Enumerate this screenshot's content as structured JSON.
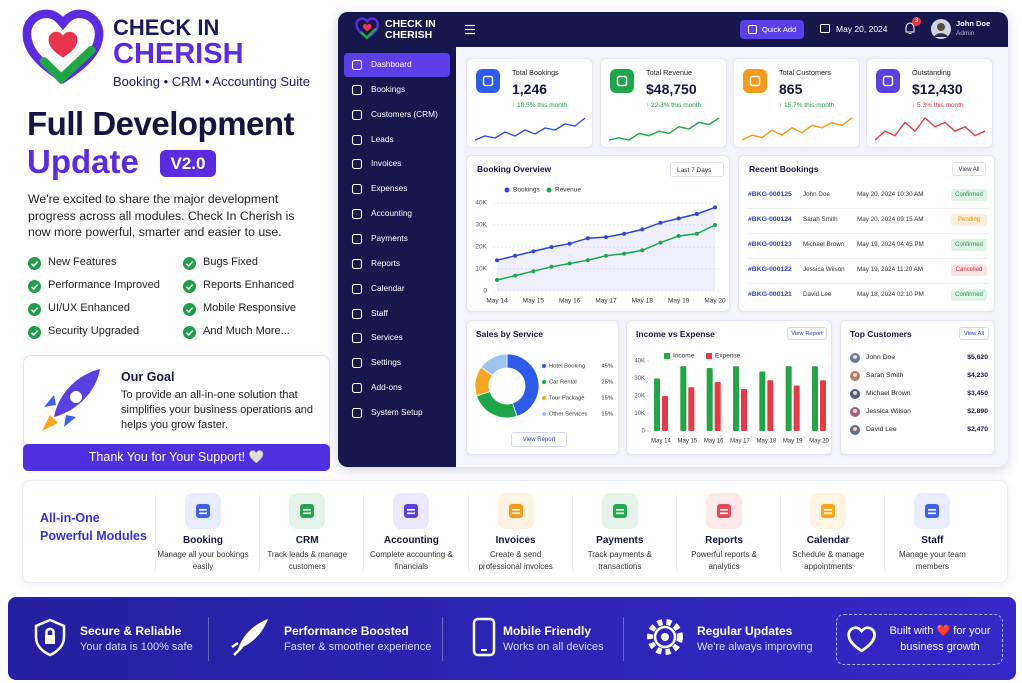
{
  "brand": {
    "name_line1": "CHECK IN",
    "name_line2": "CHERISH",
    "tagline": "Booking • CRM • Accounting Suite"
  },
  "hero": {
    "title_line1": "Full Development",
    "title_line2": "Update",
    "version": "V2.0",
    "description": "We're excited to share the major development progress across all modules. Check In Cherish is now more powerful, smarter and easier to use.",
    "features": [
      "New Features",
      "Bugs Fixed",
      "Performance Improved",
      "Reports Enhanced",
      "UI/UX Enhanced",
      "Mobile Responsive",
      "Security Upgraded",
      "And Much More..."
    ]
  },
  "goal": {
    "title": "Our Goal",
    "text": "To provide an all-in-one solution that simplifies your business operations and helps you grow faster.",
    "button": "Thank You for Your Support! 🤍"
  },
  "dashboard": {
    "brand": {
      "line1": "CHECK IN",
      "line2": "CHERISH"
    },
    "quick_add": "Quick Add",
    "date": "May 20, 2024",
    "notifications": "3",
    "user": {
      "name": "John Doe",
      "role": "Admin"
    },
    "nav": [
      "Dashboard",
      "Bookings",
      "Customers (CRM)",
      "Leads",
      "Invoices",
      "Expenses",
      "Accounting",
      "Payments",
      "Reports",
      "Calendar",
      "Staff",
      "Services",
      "Settings",
      "Add-ons",
      "System Setup"
    ],
    "stats": [
      {
        "label": "Total Bookings",
        "value": "1,246",
        "change": "↑ 18.5% this month",
        "color": "#2f5bea",
        "change_color": "#1f9d4a",
        "trend_color": "#2f4fd8",
        "trend": [
          4,
          6,
          5,
          8,
          6,
          9,
          7,
          10,
          9,
          12,
          11,
          15
        ]
      },
      {
        "label": "Total Revenue",
        "value": "$48,750",
        "change": "↑ 22.3% this month",
        "color": "#1fa54a",
        "change_color": "#1f9d4a",
        "trend_color": "#1fa54a",
        "trend": [
          3,
          4,
          3,
          6,
          5,
          7,
          6,
          9,
          8,
          11,
          10,
          13
        ]
      },
      {
        "label": "Total Customers",
        "value": "865",
        "change": "↑ 15.7% this month",
        "color": "#f59a1b",
        "change_color": "#1f9d4a",
        "trend_color": "#f59a1b",
        "trend": [
          3,
          5,
          4,
          7,
          5,
          8,
          6,
          9,
          8,
          10,
          9,
          12
        ]
      },
      {
        "label": "Outstanding",
        "value": "$12,430",
        "change": "↓ 5.3% this month",
        "color": "#5b3fe0",
        "change_color": "#d9313f",
        "trend_color": "#e23b4a",
        "trend": [
          7,
          9,
          8,
          11,
          9,
          12,
          10,
          11,
          9,
          10,
          8,
          9
        ]
      }
    ],
    "booking_overview": {
      "type": "line",
      "title": "Booking Overview",
      "range": "Last 7 Days",
      "x": [
        "May 14",
        null,
        "May 15",
        null,
        "May 16",
        null,
        "May 17",
        null,
        "May 18",
        null,
        "May 19",
        null,
        "May 20"
      ],
      "series": [
        {
          "name": "Bookings",
          "color": "#2f45d8",
          "values": [
            14000,
            16000,
            18000,
            20000,
            21500,
            24000,
            24500,
            26000,
            28000,
            31000,
            33000,
            35000,
            38000
          ]
        },
        {
          "name": "Revenue",
          "color": "#1fa54a",
          "values": [
            5000,
            7000,
            9000,
            11000,
            12500,
            14000,
            16000,
            17000,
            18500,
            22000,
            25000,
            26000,
            30000
          ]
        }
      ],
      "ylim": [
        0,
        40000
      ],
      "yticks": [
        0,
        {
          "value": 10000,
          "label": "10K"
        },
        {
          "value": 20000,
          "label": "20K"
        },
        {
          "value": 30000,
          "label": "30K"
        },
        {
          "value": 40000,
          "label": "40K"
        }
      ],
      "grid": true
    },
    "recent_bookings": {
      "title": "Recent Bookings",
      "button": "View All",
      "rows": [
        {
          "id": "#BKG-000125",
          "name": "John Doe",
          "datetime": "May 20, 2024 10:30 AM",
          "status": "Confirmed",
          "status_color": "#1f9d4a"
        },
        {
          "id": "#BKG-000124",
          "name": "Sarah Smith",
          "datetime": "May 20, 2024 09:15 AM",
          "status": "Pending",
          "status_color": "#e08a00"
        },
        {
          "id": "#BKG-000123",
          "name": "Michael Brown",
          "datetime": "May 19, 2024 04:45 PM",
          "status": "Confirmed",
          "status_color": "#1f9d4a"
        },
        {
          "id": "#BKG-000122",
          "name": "Jessica Wilson",
          "datetime": "May 19, 2024 11:20 AM",
          "status": "Cancelled",
          "status_color": "#d9313f"
        },
        {
          "id": "#BKG-000121",
          "name": "David Lee",
          "datetime": "May 18, 2024 02:10 PM",
          "status": "Confirmed",
          "status_color": "#1f9d4a"
        }
      ]
    },
    "sales_by_service": {
      "type": "pie",
      "title": "Sales by Service",
      "categories": [
        "Hotel Booking",
        "Car Rental",
        "Tour Package",
        "Other Services"
      ],
      "values": [
        45,
        25,
        15,
        15
      ],
      "value_labels": [
        "45%",
        "25%",
        "15%",
        "15%"
      ],
      "colors": [
        "#2f5bea",
        "#1fa54a",
        "#f5a623",
        "#9fc4f0"
      ],
      "button": "View Report"
    },
    "income_vs_expense": {
      "type": "bar",
      "title": "Income vs Expense",
      "button": "View Report",
      "categories": [
        "May 14",
        "May 15",
        "May 16",
        "May 17",
        "May 18",
        "May 19",
        "May 20"
      ],
      "series": [
        {
          "name": "Income",
          "color": "#22a447",
          "values": [
            30000,
            37000,
            36000,
            37000,
            34000,
            37000,
            37000
          ]
        },
        {
          "name": "Expense",
          "color": "#e23b4a",
          "values": [
            20000,
            25000,
            28000,
            24000,
            29000,
            26000,
            29000
          ]
        }
      ],
      "ylim": [
        0,
        40000
      ],
      "yticks": [
        0,
        {
          "value": 10000,
          "label": "10K"
        },
        {
          "value": 20000,
          "label": "20K"
        },
        {
          "value": 30000,
          "label": "30K"
        },
        {
          "value": 40000,
          "label": "40K"
        }
      ]
    },
    "top_customers": {
      "title": "Top Customers",
      "button": "View All",
      "rows": [
        {
          "name": "John Doe",
          "amount": "$5,620"
        },
        {
          "name": "Sarah Smith",
          "amount": "$4,230"
        },
        {
          "name": "Michael Brown",
          "amount": "$3,450"
        },
        {
          "name": "Jessica Wilson",
          "amount": "$2,890"
        },
        {
          "name": "David Lee",
          "amount": "$2,470"
        }
      ]
    }
  },
  "modules": {
    "title_line1": "All-in-One",
    "title_line2": "Powerful Modules",
    "items": [
      {
        "name": "Booking",
        "description": "Manage all your bookings easily",
        "color": "#3f63e8"
      },
      {
        "name": "CRM",
        "description": "Track leads & manage customers",
        "color": "#27a553"
      },
      {
        "name": "Accounting",
        "description": "Complete accounting & financials",
        "color": "#5b3fe0"
      },
      {
        "name": "Invoices",
        "description": "Create & send professional invoices",
        "color": "#f59a1b"
      },
      {
        "name": "Payments",
        "description": "Track payments & transactions",
        "color": "#27a553"
      },
      {
        "name": "Reports",
        "description": "Powerful reports & analytics",
        "color": "#e24a5a"
      },
      {
        "name": "Calendar",
        "description": "Schedule & manage appointments",
        "color": "#f5a623"
      },
      {
        "name": "Staff",
        "description": "Manage your team members",
        "color": "#3f63e8"
      }
    ]
  },
  "footer": {
    "items": [
      {
        "title": "Secure & Reliable",
        "subtitle": "Your data is 100% safe"
      },
      {
        "title": "Performance Boosted",
        "subtitle": "Faster & smoother experience"
      },
      {
        "title": "Mobile Friendly",
        "subtitle": "Works on all devices"
      },
      {
        "title": "Regular Updates",
        "subtitle": "We're always improving"
      }
    ],
    "closing": "Built with ❤️ for your business growth"
  }
}
